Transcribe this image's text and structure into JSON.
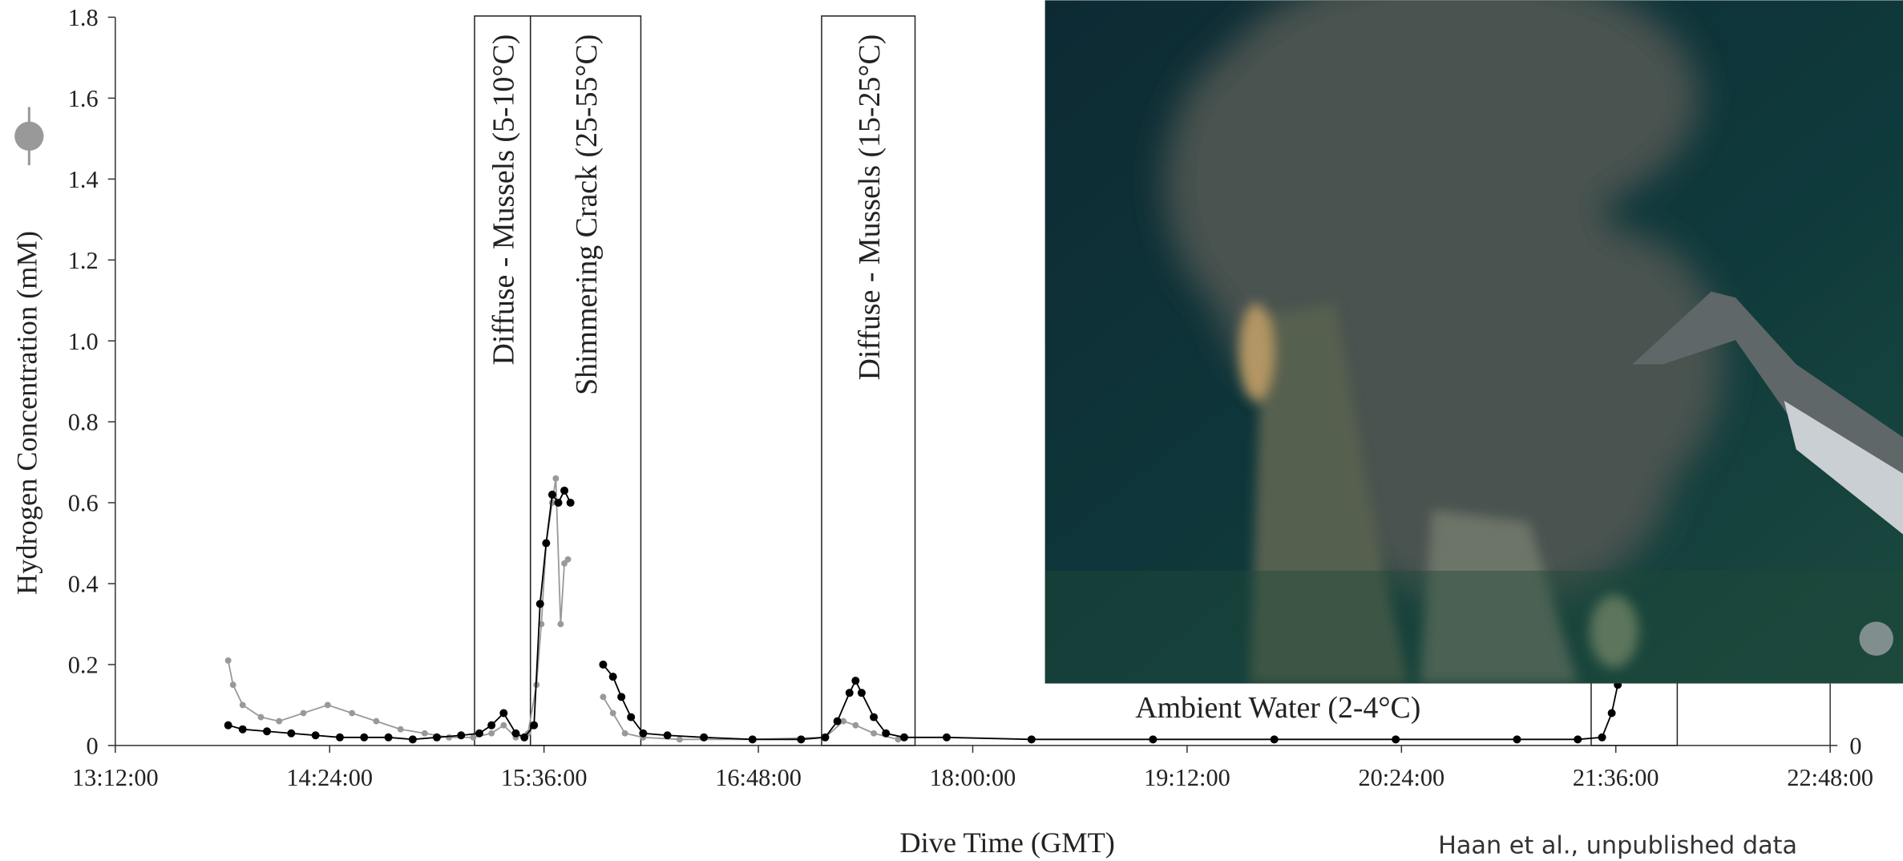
{
  "chart_data": {
    "type": "line",
    "markers": true,
    "y_label": "Hydrogen Concentration (mM)",
    "x_label": "Dive Time (GMT)",
    "source": "Haan et al., unpublished data",
    "xlim": [
      13.2,
      22.8
    ],
    "xticks": [
      {
        "value": 13.2,
        "label": "13:12:00"
      },
      {
        "value": 14.4,
        "label": "14:24:00"
      },
      {
        "value": 15.6,
        "label": "15:36:00"
      },
      {
        "value": 16.8,
        "label": "16:48:00"
      },
      {
        "value": 18.0,
        "label": "18:00:00"
      },
      {
        "value": 19.2,
        "label": "19:12:00"
      },
      {
        "value": 20.4,
        "label": "20:24:00"
      },
      {
        "value": 21.6,
        "label": "21:36:00"
      },
      {
        "value": 22.8,
        "label": "22:48:00"
      }
    ],
    "ylim": [
      0,
      1.8
    ],
    "yticks": [
      0,
      0.2,
      0.4,
      0.6,
      0.8,
      {
        "value": 1,
        "label": "1.0"
      },
      1.2,
      1.4,
      1.6,
      1.8
    ],
    "y2lim": [
      0,
      1.8
    ],
    "y2ticks": [
      0
    ],
    "regions": [
      {
        "label": "Diffuse - Mussels (5-10°C)",
        "start": 15.211,
        "end": 15.524
      },
      {
        "label": "Shimmering Crack (25-55°C)",
        "start": 15.524,
        "end": 16.142
      },
      {
        "label": "Diffuse - Mussels (15-25°C)",
        "start": 17.154,
        "end": 17.677
      },
      {
        "label": null,
        "start": 21.462,
        "end": 21.944
      }
    ],
    "annotations": [
      {
        "text": "Ambient Water (2-4°C)",
        "x": 19.709,
        "y": 0.093
      }
    ],
    "series": [
      {
        "color": "#999999",
        "x": [
          13.832,
          13.859,
          13.913,
          14.015,
          14.117,
          14.253,
          14.389,
          14.525,
          14.661,
          14.797,
          14.932,
          15.068,
          15.204,
          15.306,
          15.374,
          15.442,
          15.51,
          15.558,
          15.585,
          15.612,
          15.646,
          15.666,
          15.693,
          15.714,
          15.734,
          15.816,
          15.931,
          15.986,
          16.053,
          16.155,
          16.359,
          16.767,
          17.174,
          17.276,
          17.344,
          17.446,
          17.582
        ],
        "values": [
          0.21,
          0.15,
          0.1,
          0.07,
          0.06,
          0.08,
          0.1,
          0.08,
          0.06,
          0.04,
          0.03,
          0.02,
          0.02,
          0.03,
          0.05,
          0.02,
          0.03,
          0.15,
          0.3,
          0.5,
          0.6,
          0.66,
          0.3,
          0.45,
          0.46,
          null,
          0.12,
          0.08,
          0.03,
          0.02,
          0.015,
          0.015,
          0.02,
          0.06,
          0.05,
          0.03,
          0.015
        ]
      },
      {
        "color": "#000000",
        "x": [
          13.832,
          13.913,
          14.049,
          14.185,
          14.321,
          14.457,
          14.593,
          14.729,
          14.865,
          15.0,
          15.136,
          15.238,
          15.306,
          15.374,
          15.442,
          15.49,
          15.544,
          15.578,
          15.612,
          15.646,
          15.68,
          15.714,
          15.748,
          15.816,
          15.931,
          15.986,
          16.033,
          16.087,
          16.155,
          16.291,
          16.495,
          16.767,
          17.039,
          17.174,
          17.242,
          17.31,
          17.344,
          17.378,
          17.446,
          17.514,
          17.616,
          17.854,
          18.329,
          19.009,
          19.688,
          20.368,
          21.047,
          21.387,
          21.523,
          21.577,
          21.611
        ],
        "values": [
          0.05,
          0.04,
          0.035,
          0.03,
          0.025,
          0.02,
          0.02,
          0.02,
          0.015,
          0.02,
          0.025,
          0.03,
          0.05,
          0.08,
          0.03,
          0.02,
          0.05,
          0.35,
          0.5,
          0.62,
          0.6,
          0.63,
          0.6,
          null,
          0.2,
          0.17,
          0.12,
          0.07,
          0.03,
          0.025,
          0.02,
          0.015,
          0.015,
          0.02,
          0.06,
          0.13,
          0.16,
          0.13,
          0.07,
          0.03,
          0.02,
          0.02,
          0.015,
          0.015,
          0.015,
          0.015,
          0.015,
          0.015,
          0.02,
          0.08,
          0.15
        ]
      }
    ]
  }
}
